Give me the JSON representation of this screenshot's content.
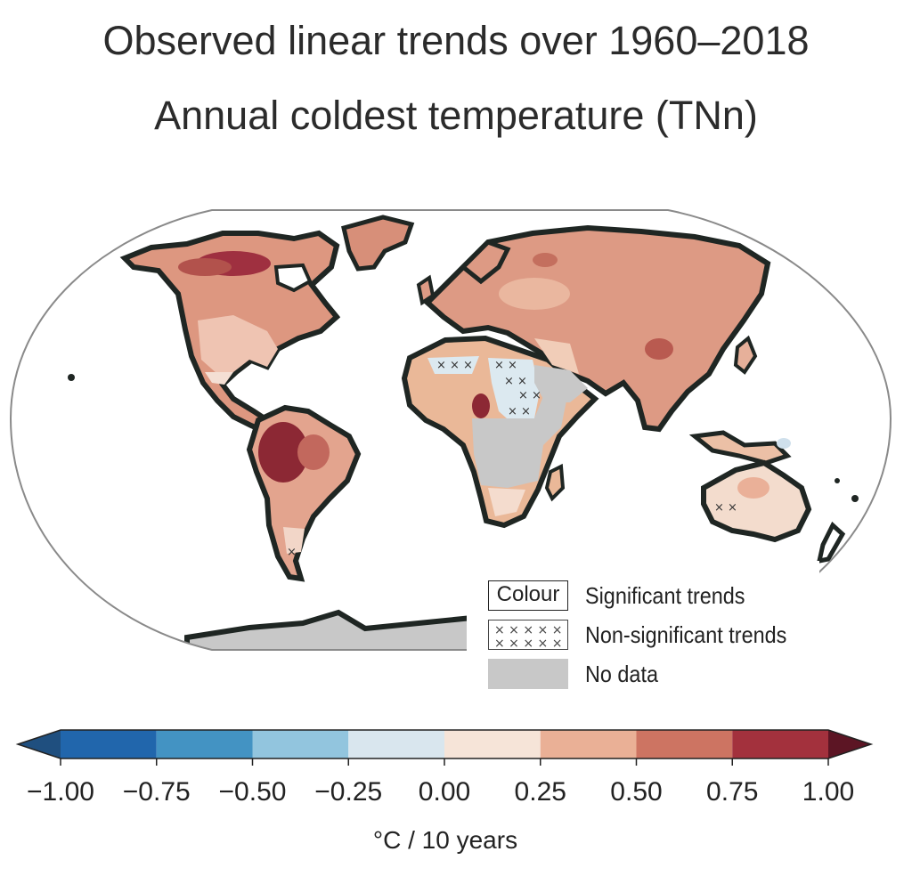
{
  "title": "Observed linear trends over 1960–2018",
  "subtitle": "Annual coldest temperature (TNn)",
  "legend": {
    "colour_box": "Colour",
    "significant": "Significant trends",
    "non_significant": "Non-significant trends",
    "no_data": "No data"
  },
  "colorbar": {
    "units": "°C / 10 years",
    "ticks": [
      "−1.00",
      "−0.75",
      "−0.50",
      "−0.25",
      "0.00",
      "0.25",
      "0.50",
      "0.75",
      "1.00"
    ],
    "tick_values": [
      -1.0,
      -0.75,
      -0.5,
      -0.25,
      0.0,
      0.25,
      0.5,
      0.75,
      1.0
    ],
    "bin_colors": [
      "#2166ac",
      "#4393c3",
      "#92c5de",
      "#d9e6ee",
      "#f6e4d8",
      "#eab096",
      "#cd7462",
      "#a3313d"
    ],
    "low_extend_color": "#1f4f7f",
    "high_extend_color": "#5c1524"
  },
  "colors": {
    "no_data": "#c8c8c8",
    "coastline": "#1f2623",
    "frame": "#8a8a8a"
  }
}
